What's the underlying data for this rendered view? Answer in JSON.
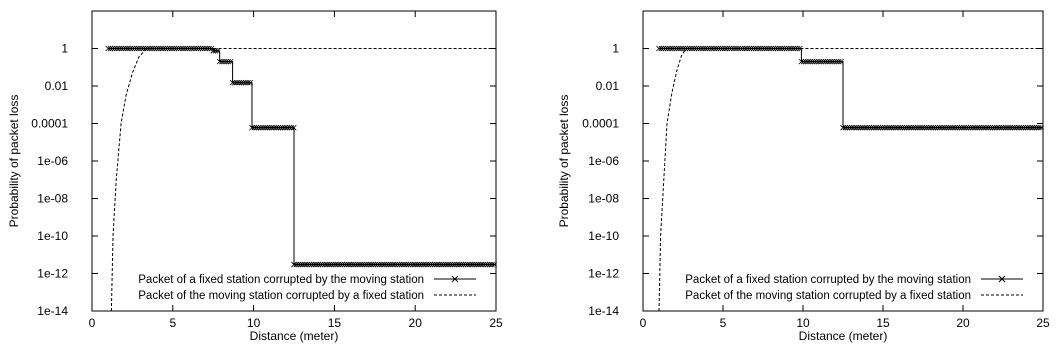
{
  "chart_data": [
    {
      "type": "line",
      "xlabel": "Distance (meter)",
      "ylabel": "Probability of packet loss",
      "x_scale": "linear",
      "y_scale": "log",
      "xlim": [
        0,
        25
      ],
      "ylim": [
        1e-14,
        100
      ],
      "x_ticks": [
        "0",
        "5",
        "10",
        "15",
        "20",
        "25"
      ],
      "y_ticks": [
        "1e-14",
        "1e-12",
        "1e-10",
        "1e-08",
        "1e-06",
        "0.0001",
        "0.01",
        "1"
      ],
      "grid": false,
      "legend_position": "bottom-right",
      "series": [
        {
          "name": "Packet of a fixed station corrupted by the moving station",
          "style": "solid-with-x-markers",
          "x": [
            1.0,
            7.5,
            7.5,
            7.9,
            7.9,
            8.7,
            8.7,
            9.9,
            9.9,
            12.5,
            12.5,
            25.0
          ],
          "y": [
            1,
            1,
            0.75,
            0.75,
            0.2,
            0.2,
            0.015,
            0.015,
            6e-05,
            6e-05,
            3e-12,
            3e-12
          ]
        },
        {
          "name": "Packet of the moving station corrupted by a fixed station",
          "style": "dashed",
          "x": [
            1.2,
            1.3,
            1.5,
            1.8,
            2.1,
            2.5,
            2.9,
            3.3,
            3.6,
            25.0
          ],
          "y": [
            1e-14,
            1e-10,
            1e-07,
            0.0001,
            0.003,
            0.05,
            0.35,
            0.85,
            1,
            1
          ]
        }
      ]
    },
    {
      "type": "line",
      "xlabel": "Distance (meter)",
      "ylabel": "Probability of packet loss",
      "x_scale": "linear",
      "y_scale": "log",
      "xlim": [
        0,
        25
      ],
      "ylim": [
        1e-14,
        100
      ],
      "x_ticks": [
        "0",
        "5",
        "10",
        "15",
        "20",
        "25"
      ],
      "y_ticks": [
        "1e-14",
        "1e-12",
        "1e-10",
        "1e-08",
        "1e-06",
        "0.0001",
        "0.01",
        "1"
      ],
      "grid": false,
      "legend_position": "bottom-right",
      "series": [
        {
          "name": "Packet of a fixed station corrupted by the moving station",
          "style": "solid-with-x-markers",
          "x": [
            1.0,
            9.9,
            9.9,
            12.5,
            12.5,
            25.0
          ],
          "y": [
            1,
            1,
            0.2,
            0.2,
            6e-05,
            6e-05
          ]
        },
        {
          "name": "Packet of the moving station corrupted by a fixed station",
          "style": "dashed",
          "x": [
            1.0,
            1.1,
            1.3,
            1.5,
            1.8,
            2.1,
            2.4,
            2.7,
            25.0
          ],
          "y": [
            1e-14,
            1e-10,
            1e-07,
            0.0001,
            0.004,
            0.06,
            0.4,
            1,
            1
          ]
        }
      ]
    }
  ]
}
